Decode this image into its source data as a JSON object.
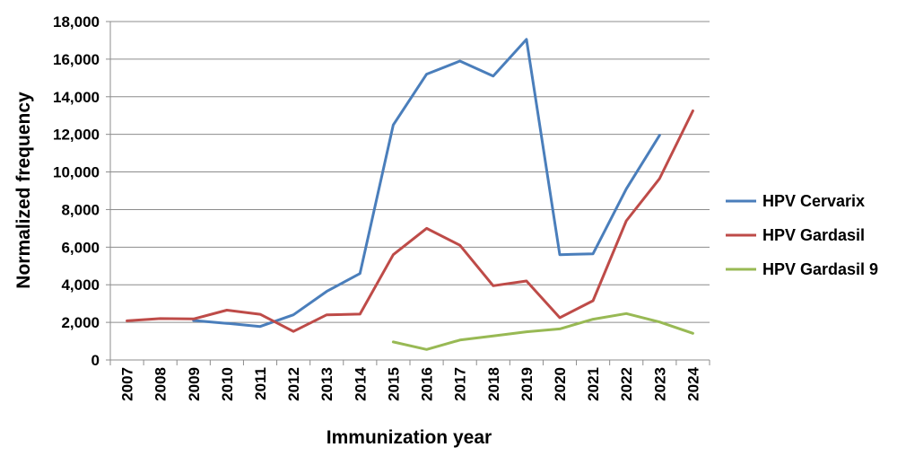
{
  "chart_data": {
    "type": "line",
    "title": "",
    "xlabel": "Immunization year",
    "ylabel": "Normalized frequency",
    "x": [
      "2007",
      "2008",
      "2009",
      "2010",
      "2011",
      "2012",
      "2013",
      "2014",
      "2015",
      "2016",
      "2017",
      "2018",
      "2019",
      "2020",
      "2021",
      "2022",
      "2023",
      "2024"
    ],
    "ylim": [
      0,
      18000
    ],
    "yticks": [
      0,
      2000,
      4000,
      6000,
      8000,
      10000,
      12000,
      14000,
      16000,
      18000
    ],
    "ytick_labels": [
      "0",
      "2,000",
      "4,000",
      "6,000",
      "8,000",
      "10,000",
      "12,000",
      "14,000",
      "16,000",
      "18,000"
    ],
    "grid": true,
    "legend_position": "right",
    "series": [
      {
        "name": "HPV Cervarix",
        "color": "#4a7ebb",
        "values": [
          null,
          null,
          2100,
          1950,
          1780,
          2400,
          3650,
          4600,
          12500,
          15200,
          15900,
          15100,
          17050,
          5600,
          5650,
          9100,
          11950,
          null
        ]
      },
      {
        "name": "HPV Gardasil",
        "color": "#be4b48",
        "values": [
          2080,
          2200,
          2180,
          2650,
          2430,
          1520,
          2400,
          2440,
          5600,
          7000,
          6100,
          3950,
          4200,
          2250,
          3150,
          7400,
          9650,
          13250
        ]
      },
      {
        "name": "HPV Gardasil 9",
        "color": "#98b954",
        "values": [
          null,
          null,
          null,
          null,
          null,
          null,
          null,
          null,
          960,
          560,
          1060,
          1280,
          1500,
          1650,
          2170,
          2470,
          2020,
          1420
        ]
      }
    ]
  }
}
